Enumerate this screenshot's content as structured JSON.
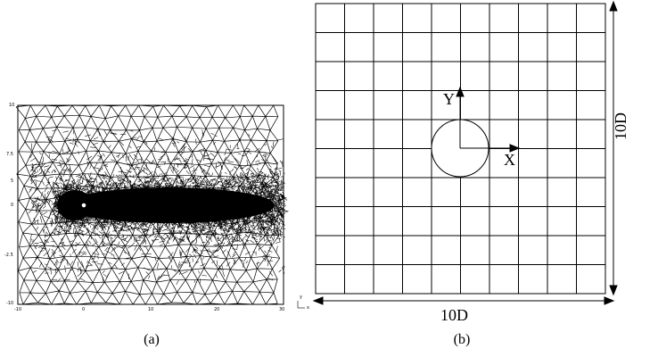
{
  "panel_a": {
    "caption": "(a)",
    "x_ticks": [
      "-10",
      "0",
      "10",
      "20",
      "30"
    ],
    "y_ticks": [
      "10",
      "7.5",
      "5",
      "0",
      "-2.5",
      "-10"
    ],
    "triad": {
      "y": "y",
      "x": "x"
    }
  },
  "panel_b": {
    "caption": "(b)",
    "grid_divisions": 10,
    "y_axis_label": "Y",
    "x_axis_label": "X",
    "width_label": "10D",
    "height_label": "10D"
  },
  "colors": {
    "line": "#000000",
    "background": "#ffffff"
  }
}
